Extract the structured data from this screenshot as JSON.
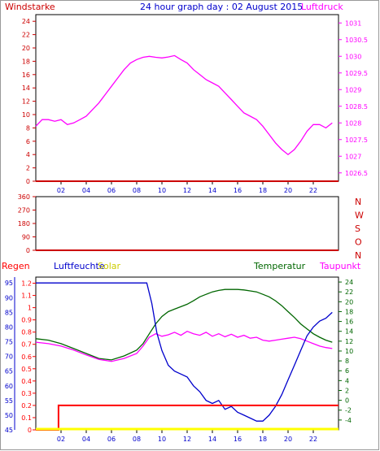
{
  "header": {
    "title": "24 hour graph day : 02 August 2015",
    "left_label": "Windstarke",
    "right_label": "Luftdruck"
  },
  "colors": {
    "wind": "#cc0000",
    "pressure": "#ff00ff",
    "title": "#0000cc",
    "humidity": "#0000cc",
    "temperature": "#006600",
    "dewpoint": "#ff00ff",
    "rain": "#ff0000",
    "solar": "#ffff00"
  },
  "chart_data": [
    {
      "type": "line",
      "name": "wind-pressure",
      "x_ticks": [
        "02",
        "04",
        "06",
        "08",
        "10",
        "12",
        "14",
        "16",
        "18",
        "20",
        "22"
      ],
      "y_left_ticks": [
        "0",
        "2",
        "4",
        "6",
        "8",
        "10",
        "12",
        "14",
        "16",
        "18",
        "20",
        "22",
        "24"
      ],
      "y_left_range": [
        0,
        25
      ],
      "y_right_ticks": [
        "1026.5",
        "1027",
        "1027.5",
        "1028",
        "1028.5",
        "1029",
        "1029.5",
        "1030",
        "1030.5",
        "1031"
      ],
      "y_right_range": [
        1026.25,
        1031.25
      ],
      "series": [
        {
          "axis": "right",
          "color": "#ff00ff",
          "x": [
            0,
            0.5,
            1,
            1.5,
            2,
            2.5,
            3,
            3.5,
            4,
            4.5,
            5,
            5.5,
            6,
            6.5,
            7,
            7.5,
            8,
            8.5,
            9,
            9.5,
            10,
            10.5,
            11,
            11.5,
            12,
            12.5,
            13,
            13.5,
            14,
            14.5,
            15,
            15.5,
            16,
            16.5,
            17,
            17.5,
            18,
            18.5,
            19,
            19.5,
            20,
            20.5,
            21,
            21.5,
            22,
            22.5,
            23,
            23.5
          ],
          "y": [
            1027.9,
            1028.1,
            1028.1,
            1028.05,
            1028.1,
            1027.95,
            1028.0,
            1028.1,
            1028.2,
            1028.4,
            1028.6,
            1028.85,
            1029.1,
            1029.35,
            1029.6,
            1029.8,
            1029.9,
            1029.97,
            1030.0,
            1029.97,
            1029.95,
            1029.98,
            1030.02,
            1029.9,
            1029.8,
            1029.6,
            1029.45,
            1029.3,
            1029.2,
            1029.1,
            1028.9,
            1028.7,
            1028.5,
            1028.3,
            1028.2,
            1028.1,
            1027.9,
            1027.65,
            1027.4,
            1027.2,
            1027.05,
            1027.2,
            1027.45,
            1027.75,
            1027.95,
            1027.95,
            1027.85,
            1028.0
          ]
        },
        {
          "axis": "left",
          "color": "#cc0000",
          "x": [
            0,
            24
          ],
          "y": [
            0,
            0
          ]
        }
      ]
    },
    {
      "type": "line",
      "name": "wind-direction",
      "y_left_ticks": [
        "0",
        "90",
        "180",
        "270",
        "360"
      ],
      "y_left_range": [
        0,
        360
      ],
      "direction_labels": [
        "N",
        "W",
        "S",
        "O",
        "N"
      ],
      "series": [
        {
          "color": "#cc0000",
          "x": [
            0,
            24
          ],
          "y": [
            0,
            0
          ]
        }
      ]
    },
    {
      "type": "line",
      "name": "rain-humidity-solar-temperature-dewpoint",
      "labels": {
        "rain": "Regen",
        "humidity": "Luftfeuchte",
        "solar": "Solar",
        "temperature": "Temperatur",
        "dewpoint": "Taupunkt"
      },
      "x_ticks": [
        "02",
        "04",
        "06",
        "08",
        "10",
        "12",
        "14",
        "16",
        "18",
        "20",
        "22"
      ],
      "rain_ticks": [
        "0",
        "0.1",
        "0.2",
        "0.3",
        "0.4",
        "0.5",
        "0.6",
        "0.7",
        "0.8",
        "0.9",
        "1",
        "1.1",
        "1.2"
      ],
      "rain_range": [
        0,
        1.25
      ],
      "humidity_ticks": [
        "45",
        "50",
        "55",
        "60",
        "65",
        "70",
        "75",
        "80",
        "85",
        "90",
        "95"
      ],
      "humidity_range": [
        45,
        97
      ],
      "temp_ticks": [
        "-4",
        "-2",
        "0",
        "2",
        "4",
        "6",
        "8",
        "10",
        "12",
        "14",
        "16",
        "18",
        "20",
        "22",
        "24"
      ],
      "temp_range": [
        -6,
        25
      ],
      "series": [
        {
          "key": "humidity",
          "axis": "humidity",
          "color": "#0000cc",
          "x": [
            0,
            1,
            2,
            3,
            4,
            5,
            6,
            7,
            8,
            8.8,
            9.2,
            9.6,
            10,
            10.5,
            11,
            11.5,
            12,
            12.5,
            13,
            13.5,
            14,
            14.5,
            15,
            15.5,
            16,
            16.5,
            17,
            17.5,
            18,
            18.5,
            19,
            19.5,
            20,
            20.5,
            21,
            21.5,
            22,
            22.5,
            23,
            23.5
          ],
          "y": [
            95,
            95,
            95,
            95,
            95,
            95,
            95,
            95,
            95,
            95,
            88,
            78,
            72,
            67,
            65,
            64,
            63,
            60,
            58,
            55,
            54,
            55,
            52,
            53,
            51,
            50,
            49,
            48,
            48,
            50,
            53,
            57,
            62,
            67,
            72,
            77,
            80,
            82,
            83,
            85
          ]
        },
        {
          "key": "temperature",
          "axis": "temp",
          "color": "#006600",
          "x": [
            0,
            1,
            2,
            3,
            4,
            5,
            6,
            7,
            8,
            8.5,
            9,
            9.5,
            10,
            10.5,
            11,
            11.5,
            12,
            12.5,
            13,
            13.5,
            14,
            14.5,
            15,
            15.5,
            16,
            16.5,
            17,
            17.5,
            18,
            18.5,
            19,
            19.5,
            20,
            20.5,
            21,
            21.5,
            22,
            22.5,
            23,
            23.5
          ],
          "y": [
            12.5,
            12.2,
            11.5,
            10.5,
            9.5,
            8.5,
            8.2,
            9.0,
            10.2,
            11.5,
            13.5,
            15.5,
            17.0,
            18.0,
            18.5,
            19.0,
            19.5,
            20.2,
            21.0,
            21.5,
            22.0,
            22.3,
            22.5,
            22.5,
            22.5,
            22.4,
            22.2,
            22.0,
            21.5,
            21.0,
            20.2,
            19.2,
            18.0,
            16.8,
            15.5,
            14.5,
            13.5,
            12.8,
            12.2,
            11.8
          ]
        },
        {
          "key": "dewpoint",
          "axis": "temp",
          "color": "#ff00ff",
          "x": [
            0,
            1,
            2,
            3,
            4,
            5,
            6,
            7,
            8,
            8.5,
            9,
            9.5,
            10,
            10.5,
            11,
            11.5,
            12,
            12.5,
            13,
            13.5,
            14,
            14.5,
            15,
            15.5,
            16,
            16.5,
            17,
            17.5,
            18,
            18.5,
            19,
            19.5,
            20,
            20.5,
            21,
            21.5,
            22,
            22.5,
            23,
            23.5
          ],
          "y": [
            11.8,
            11.5,
            11.0,
            10.2,
            9.2,
            8.3,
            7.9,
            8.5,
            9.5,
            11.0,
            12.8,
            13.5,
            13.0,
            13.3,
            13.8,
            13.2,
            14.0,
            13.5,
            13.2,
            13.8,
            13.0,
            13.5,
            12.9,
            13.4,
            12.8,
            13.2,
            12.6,
            12.8,
            12.2,
            12.0,
            12.2,
            12.4,
            12.6,
            12.8,
            12.5,
            12.0,
            11.5,
            11.0,
            10.7,
            10.5
          ]
        },
        {
          "key": "rain",
          "axis": "rain",
          "color": "#ff0000",
          "x": [
            0,
            1.8,
            1.8,
            24
          ],
          "y": [
            0,
            0,
            0.2,
            0.2
          ]
        },
        {
          "key": "solar",
          "axis": "rain",
          "color": "#ffff00",
          "x": [
            0,
            24
          ],
          "y": [
            0,
            0
          ]
        }
      ]
    }
  ]
}
